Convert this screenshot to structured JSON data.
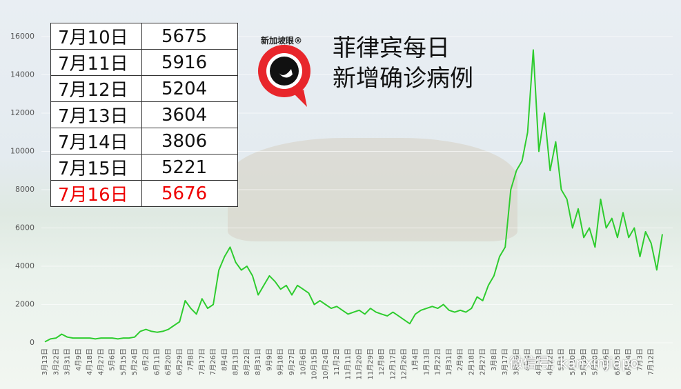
{
  "chart_data": {
    "type": "line",
    "title": "菲律宾每日\n新增确诊病例",
    "color": "#2ecc2e",
    "categories": [
      "3月13日",
      null,
      "3月22日",
      null,
      "3月31日",
      null,
      "4月9日",
      null,
      "4月18日",
      null,
      "4月27日",
      null,
      "5月6日",
      null,
      "5月15日",
      null,
      "5月24日",
      null,
      "6月2日",
      null,
      "6月11日",
      null,
      "6月20日",
      null,
      "6月29日",
      null,
      "7月8日",
      null,
      "7月17日",
      null,
      "7月26日",
      null,
      "8月4日",
      null,
      "8月13日",
      null,
      "8月22日",
      null,
      "8月31日",
      null,
      "9月9日",
      null,
      "9月18日",
      null,
      "9月27日",
      null,
      "10月6日",
      null,
      "10月15日",
      null,
      "10月24日",
      null,
      "11月2日",
      null,
      "11月11日",
      null,
      "11月20日",
      null,
      "11月29日",
      null,
      "12月8日",
      null,
      "12月17日",
      null,
      "12月26日",
      null,
      "1月4日",
      null,
      "1月13日",
      null,
      "1月22日",
      null,
      "1月31日",
      null,
      "2月9日",
      null,
      "2月18日",
      null,
      "2月27日",
      null,
      "3月8日",
      null,
      "3月17日",
      null,
      "3月26日",
      null,
      "4月4日",
      null,
      "4月13日",
      null,
      "4月22日",
      null,
      "5月1日",
      null,
      "5月10日",
      null,
      "5月19日",
      null,
      "5月28日",
      null,
      "6月6日",
      null,
      "6月15日",
      null,
      "6月24日",
      null,
      "7月3日",
      null,
      "7月12日",
      null,
      null
    ],
    "values": [
      50,
      200,
      250,
      450,
      300,
      250,
      250,
      250,
      250,
      200,
      250,
      250,
      250,
      200,
      250,
      250,
      300,
      600,
      700,
      600,
      550,
      600,
      700,
      900,
      1100,
      2200,
      1800,
      1500,
      2300,
      1800,
      2000,
      3800,
      4500,
      5000,
      4200,
      3800,
      4000,
      3500,
      2500,
      3000,
      3500,
      3200,
      2800,
      3000,
      2500,
      3000,
      2800,
      2600,
      2000,
      2200,
      2000,
      1800,
      1900,
      1700,
      1500,
      1600,
      1700,
      1500,
      1800,
      1600,
      1500,
      1400,
      1600,
      1400,
      1200,
      1000,
      1500,
      1700,
      1800,
      1900,
      1800,
      2000,
      1700,
      1600,
      1700,
      1600,
      1800,
      2400,
      2200,
      3000,
      3500,
      4500,
      5000,
      8000,
      9000,
      9500,
      11000,
      15300,
      10000,
      12000,
      9000,
      10500,
      8000,
      7500,
      6000,
      7000,
      5500,
      6000,
      5000,
      7500,
      6000,
      6500,
      5500,
      6800,
      5500,
      6000,
      4500,
      5800,
      5204,
      3806,
      5676
    ],
    "ylim": [
      0,
      18000
    ],
    "yticks": [
      0,
      2000,
      4000,
      6000,
      8000,
      10000,
      12000,
      14000,
      16000
    ],
    "grid": true
  },
  "table": {
    "rows": [
      [
        "7月10日",
        "5675"
      ],
      [
        "7月11日",
        "5916"
      ],
      [
        "7月12日",
        "5204"
      ],
      [
        "7月13日",
        "3604"
      ],
      [
        "7月14日",
        "3806"
      ],
      [
        "7月15日",
        "5221"
      ],
      [
        "7月16日",
        "5676"
      ]
    ]
  },
  "logo": "新加坡眼®",
  "watermark": "微信号: kanxinjiapo"
}
